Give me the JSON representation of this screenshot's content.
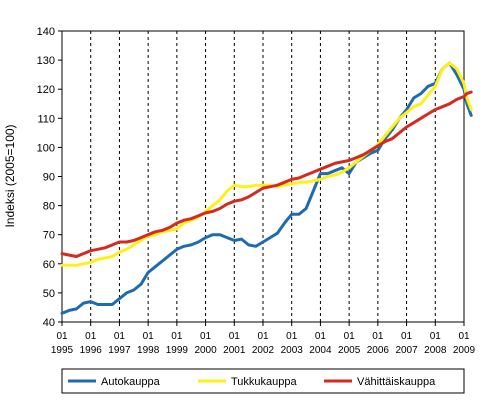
{
  "chart_data": {
    "type": "line",
    "ylabel": "Indeksi (2005=100)",
    "ylim": [
      40,
      140
    ],
    "yticks": [
      40,
      50,
      60,
      70,
      80,
      90,
      100,
      110,
      120,
      130,
      140
    ],
    "xlim": [
      1995.0,
      2009.0
    ],
    "x_month_label": "01",
    "x_years": [
      "1995",
      "1996",
      "1997",
      "1998",
      "1999",
      "2000",
      "2001",
      "2002",
      "2003",
      "2004",
      "2005",
      "2006",
      "2007",
      "2008",
      "2009"
    ],
    "grid": "vertical dashed at each year",
    "legend_position": "bottom",
    "series": [
      {
        "name": "Autokauppa",
        "color": "#1f6bb0",
        "points": [
          [
            1995.0,
            43
          ],
          [
            1995.25,
            44
          ],
          [
            1995.5,
            44.5
          ],
          [
            1995.75,
            46.5
          ],
          [
            1996.0,
            47
          ],
          [
            1996.25,
            46
          ],
          [
            1996.5,
            46
          ],
          [
            1996.75,
            46
          ],
          [
            1997.0,
            48
          ],
          [
            1997.25,
            50
          ],
          [
            1997.5,
            51
          ],
          [
            1997.75,
            53
          ],
          [
            1998.0,
            57
          ],
          [
            1998.25,
            59
          ],
          [
            1998.5,
            61
          ],
          [
            1998.75,
            63
          ],
          [
            1999.0,
            65
          ],
          [
            1999.25,
            66
          ],
          [
            1999.5,
            66.5
          ],
          [
            1999.75,
            67.5
          ],
          [
            2000.0,
            69
          ],
          [
            2000.25,
            70
          ],
          [
            2000.5,
            70
          ],
          [
            2000.75,
            69
          ],
          [
            2001.0,
            68
          ],
          [
            2001.25,
            68.5
          ],
          [
            2001.5,
            66.5
          ],
          [
            2001.75,
            66
          ],
          [
            2002.0,
            67.5
          ],
          [
            2002.25,
            69
          ],
          [
            2002.5,
            70.5
          ],
          [
            2002.75,
            74
          ],
          [
            2003.0,
            77
          ],
          [
            2003.25,
            77
          ],
          [
            2003.5,
            79
          ],
          [
            2003.75,
            85
          ],
          [
            2004.0,
            91
          ],
          [
            2004.25,
            91
          ],
          [
            2004.5,
            92
          ],
          [
            2004.75,
            93
          ],
          [
            2005.0,
            91
          ],
          [
            2005.25,
            95
          ],
          [
            2005.5,
            96.5
          ],
          [
            2005.75,
            98
          ],
          [
            2006.0,
            99
          ],
          [
            2006.25,
            103
          ],
          [
            2006.5,
            106
          ],
          [
            2006.75,
            110
          ],
          [
            2007.0,
            113
          ],
          [
            2007.25,
            117
          ],
          [
            2007.5,
            118.5
          ],
          [
            2007.75,
            121
          ],
          [
            2008.0,
            122
          ],
          [
            2008.25,
            127
          ],
          [
            2008.5,
            129
          ],
          [
            2008.75,
            125
          ],
          [
            2009.0,
            120
          ],
          [
            2009.1,
            115
          ],
          [
            2009.25,
            111
          ]
        ]
      },
      {
        "name": "Tukkukauppa",
        "color": "#ffef1a",
        "points": [
          [
            1995.0,
            59.5
          ],
          [
            1995.25,
            59.5
          ],
          [
            1995.5,
            59.5
          ],
          [
            1995.75,
            60
          ],
          [
            1996.0,
            60.5
          ],
          [
            1996.25,
            61.5
          ],
          [
            1996.5,
            62
          ],
          [
            1996.75,
            62.5
          ],
          [
            1997.0,
            64
          ],
          [
            1997.25,
            65
          ],
          [
            1997.5,
            66.5
          ],
          [
            1997.75,
            68
          ],
          [
            1998.0,
            69.5
          ],
          [
            1998.25,
            70
          ],
          [
            1998.5,
            71
          ],
          [
            1998.75,
            71.5
          ],
          [
            1999.0,
            72
          ],
          [
            1999.25,
            74
          ],
          [
            1999.5,
            75
          ],
          [
            1999.75,
            76
          ],
          [
            2000.0,
            78
          ],
          [
            2000.25,
            80
          ],
          [
            2000.5,
            82
          ],
          [
            2000.75,
            85
          ],
          [
            2001.0,
            87
          ],
          [
            2001.25,
            86.5
          ],
          [
            2001.5,
            86.5
          ],
          [
            2001.75,
            87
          ],
          [
            2002.0,
            87
          ],
          [
            2002.25,
            87
          ],
          [
            2002.5,
            86.5
          ],
          [
            2002.75,
            87
          ],
          [
            2003.0,
            87.5
          ],
          [
            2003.25,
            88
          ],
          [
            2003.5,
            88
          ],
          [
            2003.75,
            88.5
          ],
          [
            2004.0,
            89
          ],
          [
            2004.25,
            90
          ],
          [
            2004.5,
            90.5
          ],
          [
            2004.75,
            91.5
          ],
          [
            2005.0,
            93
          ],
          [
            2005.25,
            95
          ],
          [
            2005.5,
            97
          ],
          [
            2005.75,
            99
          ],
          [
            2006.0,
            101
          ],
          [
            2006.25,
            104
          ],
          [
            2006.5,
            107
          ],
          [
            2006.75,
            110
          ],
          [
            2007.0,
            112
          ],
          [
            2007.25,
            114
          ],
          [
            2007.5,
            115
          ],
          [
            2007.75,
            118
          ],
          [
            2008.0,
            121
          ],
          [
            2008.25,
            127
          ],
          [
            2008.5,
            129
          ],
          [
            2008.75,
            127
          ],
          [
            2009.0,
            122
          ],
          [
            2009.1,
            117
          ],
          [
            2009.25,
            113
          ]
        ]
      },
      {
        "name": "Vähittäiskauppa",
        "color": "#d42a20",
        "points": [
          [
            1995.0,
            63.5
          ],
          [
            1995.25,
            63
          ],
          [
            1995.5,
            62.5
          ],
          [
            1995.75,
            63.5
          ],
          [
            1996.0,
            64.5
          ],
          [
            1996.25,
            65
          ],
          [
            1996.5,
            65.5
          ],
          [
            1996.75,
            66.5
          ],
          [
            1997.0,
            67.5
          ],
          [
            1997.25,
            67.5
          ],
          [
            1997.5,
            68
          ],
          [
            1997.75,
            69
          ],
          [
            1998.0,
            70
          ],
          [
            1998.25,
            71
          ],
          [
            1998.5,
            71.5
          ],
          [
            1998.75,
            72.5
          ],
          [
            1999.0,
            74
          ],
          [
            1999.25,
            75
          ],
          [
            1999.5,
            75.5
          ],
          [
            1999.75,
            76.5
          ],
          [
            2000.0,
            77.5
          ],
          [
            2000.25,
            78
          ],
          [
            2000.5,
            79
          ],
          [
            2000.75,
            80.5
          ],
          [
            2001.0,
            81.5
          ],
          [
            2001.25,
            82
          ],
          [
            2001.5,
            83
          ],
          [
            2001.75,
            84.5
          ],
          [
            2002.0,
            86
          ],
          [
            2002.25,
            86.5
          ],
          [
            2002.5,
            87
          ],
          [
            2002.75,
            88
          ],
          [
            2003.0,
            89
          ],
          [
            2003.25,
            89.5
          ],
          [
            2003.5,
            90.5
          ],
          [
            2003.75,
            91.5
          ],
          [
            2004.0,
            92.5
          ],
          [
            2004.25,
            93.5
          ],
          [
            2004.5,
            94.5
          ],
          [
            2004.75,
            95
          ],
          [
            2005.0,
            95.5
          ],
          [
            2005.25,
            96.5
          ],
          [
            2005.5,
            97.5
          ],
          [
            2005.75,
            99
          ],
          [
            2006.0,
            100.5
          ],
          [
            2006.25,
            102
          ],
          [
            2006.5,
            103
          ],
          [
            2006.75,
            105
          ],
          [
            2007.0,
            107
          ],
          [
            2007.25,
            108.5
          ],
          [
            2007.5,
            110
          ],
          [
            2007.75,
            111.5
          ],
          [
            2008.0,
            113
          ],
          [
            2008.25,
            114
          ],
          [
            2008.5,
            115
          ],
          [
            2008.75,
            116.5
          ],
          [
            2009.0,
            117.5
          ],
          [
            2009.1,
            118.5
          ],
          [
            2009.25,
            119
          ]
        ]
      }
    ]
  }
}
